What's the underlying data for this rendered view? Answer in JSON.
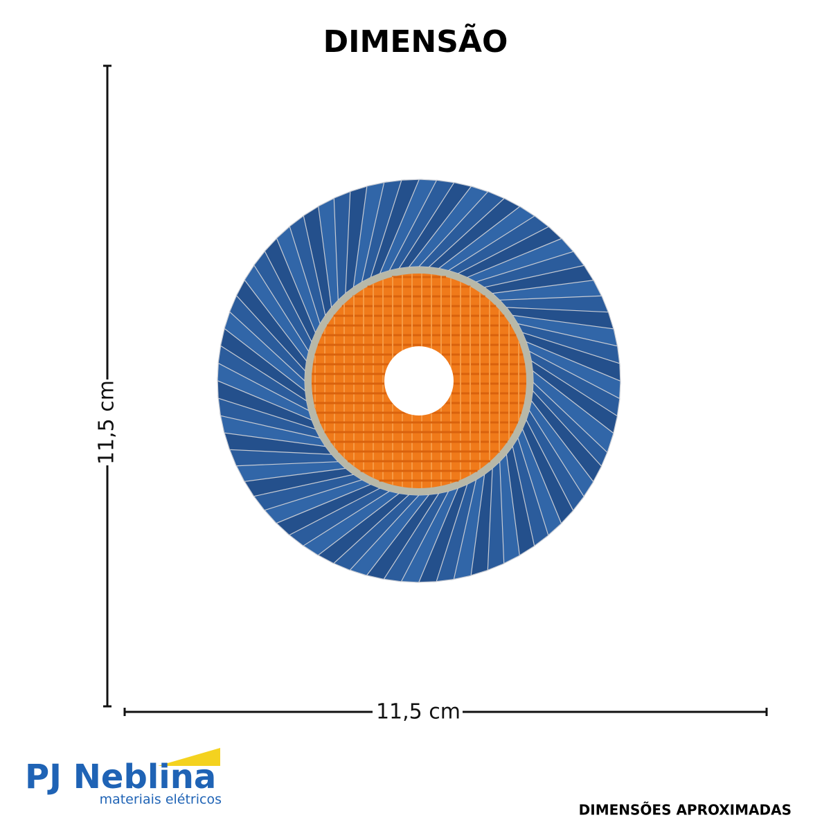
{
  "title": "DIMENSÃO",
  "height_label": "11,5 cm",
  "width_label": "11,5 cm",
  "brand": {
    "name": "PJ Neblina",
    "tagline": "materiais elétricos"
  },
  "note": "DIMENSÕES APROXIMADAS"
}
